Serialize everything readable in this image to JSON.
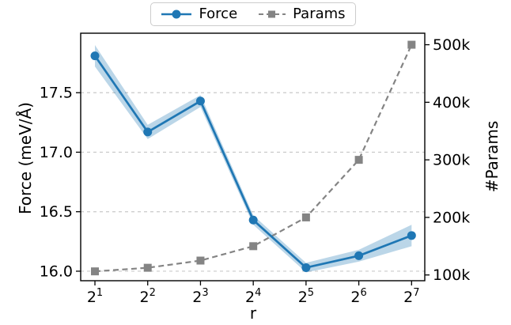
{
  "figure": {
    "background": "#ffffff"
  },
  "legend": {
    "items": [
      {
        "label": "Force",
        "color": "#1f77b4",
        "marker": "circle",
        "line": "solid"
      },
      {
        "label": "Params",
        "color": "#848484",
        "marker": "square",
        "line": "dashed"
      }
    ]
  },
  "chart_data": {
    "type": "line",
    "title": "",
    "x_axis": {
      "label": "r",
      "scale": "log2",
      "tick_base": 2,
      "tick_exponents": [
        1,
        2,
        3,
        4,
        5,
        6,
        7
      ],
      "tick_labels": [
        "2¹",
        "2²",
        "2³",
        "2⁴",
        "2⁵",
        "2⁶",
        "2⁷"
      ],
      "log2_range": [
        0.73,
        7.25
      ]
    },
    "left_axis": {
      "label": "Force (meV/Å)",
      "tick_values": [
        16.0,
        16.5,
        17.0,
        17.5
      ],
      "tick_labels": [
        "16.0",
        "16.5",
        "17.0",
        "17.5"
      ],
      "range": [
        15.92,
        18.0
      ],
      "grid": true
    },
    "right_axis": {
      "label": "#Params",
      "tick_values": [
        100000,
        200000,
        300000,
        400000,
        500000
      ],
      "tick_labels": [
        "100k",
        "200k",
        "300k",
        "400k",
        "500k"
      ],
      "range": [
        90000,
        520000
      ],
      "grid": false
    },
    "x_values": [
      2,
      4,
      8,
      16,
      32,
      64,
      128
    ],
    "series": [
      {
        "name": "Force",
        "axis": "left",
        "color": "#1f77b4",
        "marker": "circle",
        "line_style": "solid",
        "values": [
          17.81,
          17.17,
          17.43,
          16.43,
          16.03,
          16.13,
          16.3
        ],
        "std": [
          0.09,
          0.06,
          0.05,
          0.04,
          0.04,
          0.05,
          0.09
        ],
        "band_alpha": 0.3
      },
      {
        "name": "Params",
        "axis": "right",
        "color": "#848484",
        "marker": "square",
        "line_style": "dashed",
        "values": [
          106250,
          112500,
          125000,
          150000,
          200000,
          300000,
          500000
        ]
      }
    ],
    "grid": {
      "show": true,
      "source_axis": "left",
      "color": "#c9c9c9",
      "style": "dashed"
    },
    "legend_position": "top-center"
  }
}
